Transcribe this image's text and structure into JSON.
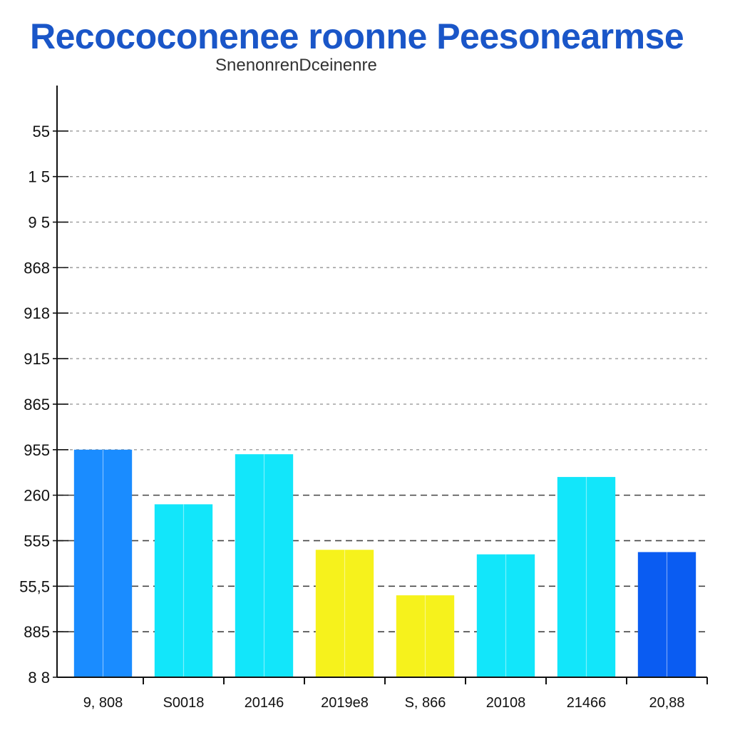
{
  "header": {
    "title": "Recococonenee roonne Peesonearmse",
    "subtitle": "SnenonrenDceinenre"
  },
  "colors": {
    "title": "#1a56c8",
    "cyan": "#12e6fa",
    "blue": "#1a8cff",
    "darkblue": "#0a5cf2",
    "yellow": "#f6f21c"
  },
  "chart_data": {
    "type": "bar",
    "title": "Recococonenee roonne Peesonearmse",
    "subtitle": "SnenonrenDceinenre",
    "xlabel": "",
    "ylabel": "",
    "categories": [
      "9, 808",
      "S0018",
      "20146",
      "2019e8",
      "S, 866",
      "20108",
      "21466",
      "20,88"
    ],
    "values": [
      5.0,
      3.8,
      4.9,
      2.8,
      1.8,
      2.7,
      4.4,
      2.75
    ],
    "bar_colors": [
      "blue",
      "cyan",
      "cyan",
      "yellow",
      "yellow",
      "cyan",
      "cyan",
      "darkblue"
    ],
    "ylim": [
      0,
      13
    ],
    "y_tick_values": [
      0,
      1,
      2,
      3,
      4,
      5,
      6,
      7,
      8,
      9,
      10,
      11,
      12
    ],
    "y_tick_labels": [
      "8 8",
      "885",
      "55,5",
      "555",
      "260",
      "955",
      "865",
      "915",
      "918",
      "868",
      "9 5",
      "1 5",
      "55"
    ],
    "grid": true
  }
}
